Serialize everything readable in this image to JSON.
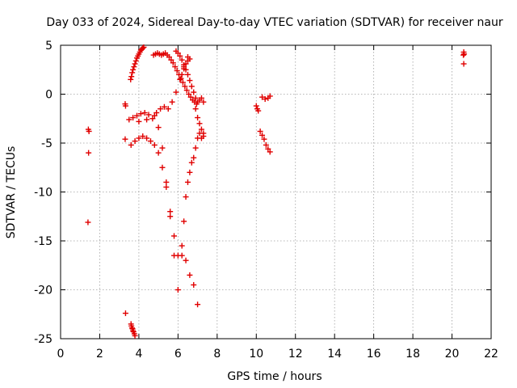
{
  "chart_data": {
    "type": "scatter",
    "title": "Day 033 of 2024, Sidereal Day-to-day VTEC variation (SDTVAR) for receiver naur",
    "xlabel": "GPS time / hours",
    "ylabel": "SDTVAR / TECUs",
    "xlim": [
      0,
      22
    ],
    "ylim": [
      -25,
      5
    ],
    "xticks": [
      "0",
      "2",
      "4",
      "6",
      "8",
      "10",
      "12",
      "14",
      "16",
      "18",
      "20",
      "22"
    ],
    "yticks": [
      "5",
      "0",
      "-5",
      "-10",
      "-15",
      "-20",
      "-25"
    ],
    "grid": true,
    "marker": "plus",
    "marker_color": "#e00000",
    "series": [
      {
        "x": [
          1.42,
          1.45,
          1.43,
          1.4
        ],
        "y": [
          -3.6,
          -3.8,
          -6.0,
          -13.1
        ]
      },
      {
        "x": [
          3.3,
          3.32,
          3.3
        ],
        "y": [
          -1.0,
          -1.2,
          -4.6
        ]
      },
      {
        "x": [
          3.32,
          3.6,
          3.62,
          3.65,
          3.68,
          3.7,
          3.73,
          3.77,
          3.8
        ],
        "y": [
          -22.4,
          -23.5,
          -23.7,
          -23.9,
          -24.0,
          -24.2,
          -24.3,
          -24.5,
          -24.7
        ]
      },
      {
        "x": [
          3.58,
          3.62,
          3.66,
          3.7,
          3.75,
          3.8,
          3.85,
          3.9,
          3.95,
          4.0,
          4.05,
          4.1,
          4.15,
          4.2,
          4.25
        ],
        "y": [
          1.5,
          1.8,
          2.2,
          2.5,
          2.8,
          3.1,
          3.4,
          3.7,
          3.9,
          4.1,
          4.3,
          4.5,
          4.6,
          4.7,
          4.8
        ]
      },
      {
        "x": [
          4.75,
          4.85,
          4.95,
          5.05,
          5.15,
          5.25,
          5.35,
          5.45,
          5.55,
          5.65,
          5.75,
          5.85,
          5.95,
          6.05,
          6.15,
          6.25,
          6.35,
          6.45,
          6.55,
          6.65,
          6.75,
          6.85,
          6.95
        ],
        "y": [
          4.0,
          4.1,
          4.2,
          4.1,
          4.0,
          4.1,
          4.2,
          4.0,
          3.8,
          3.5,
          3.2,
          2.8,
          2.4,
          2.0,
          1.6,
          1.2,
          0.8,
          0.4,
          0.0,
          -0.3,
          -0.6,
          -0.8,
          -1.0
        ]
      },
      {
        "x": [
          5.9,
          6.0,
          6.1,
          6.2,
          6.3,
          6.4,
          6.5,
          6.6,
          6.7,
          6.8,
          6.9,
          7.0,
          7.1,
          7.2,
          7.3
        ],
        "y": [
          4.4,
          4.2,
          3.9,
          3.5,
          3.0,
          2.5,
          2.0,
          1.4,
          0.8,
          0.2,
          -0.4,
          -0.8,
          -0.6,
          -0.4,
          -0.8
        ]
      },
      {
        "x": [
          6.2,
          6.3,
          6.4,
          6.5,
          6.6
        ],
        "y": [
          2.0,
          2.6,
          3.1,
          3.4,
          3.6
        ]
      },
      {
        "x": [
          3.5,
          3.7,
          3.9,
          4.1,
          4.3,
          4.5,
          4.7,
          4.9,
          5.1,
          5.3,
          5.5,
          5.7,
          5.9,
          6.1,
          6.3,
          6.5
        ],
        "y": [
          -2.6,
          -2.4,
          -2.2,
          -2.0,
          -1.9,
          -2.1,
          -2.5,
          -1.9,
          -1.5,
          -1.3,
          -1.5,
          -0.8,
          0.2,
          1.5,
          2.8,
          3.8
        ]
      },
      {
        "x": [
          3.6,
          3.8,
          4.0,
          4.2,
          4.4,
          4.6,
          4.8,
          5.0,
          5.2,
          5.4,
          5.6,
          5.8,
          6.0,
          6.2,
          6.4,
          6.6,
          6.8,
          7.0
        ],
        "y": [
          -5.2,
          -4.8,
          -4.5,
          -4.3,
          -4.5,
          -4.8,
          -5.2,
          -6.0,
          -7.5,
          -9.5,
          -12.0,
          -14.5,
          -16.5,
          -16.5,
          -17.0,
          -18.5,
          -19.5,
          -21.5
        ]
      },
      {
        "x": [
          4.0,
          4.4,
          4.8,
          5.0,
          5.2,
          5.4,
          5.6,
          5.8,
          6.0
        ],
        "y": [
          -2.8,
          -2.6,
          -2.2,
          -3.4,
          -5.5,
          -9.0,
          -12.5,
          -16.5,
          -20.0
        ]
      },
      {
        "x": [
          6.2,
          6.3,
          6.4,
          6.5,
          6.6,
          6.7,
          6.8,
          6.9,
          7.0,
          7.1,
          7.2,
          7.3
        ],
        "y": [
          -15.5,
          -13.0,
          -10.5,
          -9.0,
          -8.0,
          -7.0,
          -6.5,
          -5.5,
          -4.5,
          -4.0,
          -4.5,
          -4.3
        ]
      },
      {
        "x": [
          6.9,
          7.0,
          7.1,
          7.2,
          7.3
        ],
        "y": [
          -1.5,
          -2.4,
          -3.0,
          -3.6,
          -4.0
        ]
      },
      {
        "x": [
          10.0,
          10.05,
          10.1,
          10.2,
          10.3,
          10.4,
          10.5,
          10.6,
          10.7
        ],
        "y": [
          -1.2,
          -1.5,
          -1.7,
          -3.8,
          -4.2,
          -4.6,
          -5.2,
          -5.6,
          -5.9
        ]
      },
      {
        "x": [
          10.3,
          10.45,
          10.6,
          10.7
        ],
        "y": [
          -0.3,
          -0.5,
          -0.4,
          -0.2
        ]
      },
      {
        "x": [
          20.58,
          20.6,
          20.62,
          20.6
        ],
        "y": [
          4.0,
          4.3,
          4.1,
          3.1
        ]
      }
    ]
  }
}
